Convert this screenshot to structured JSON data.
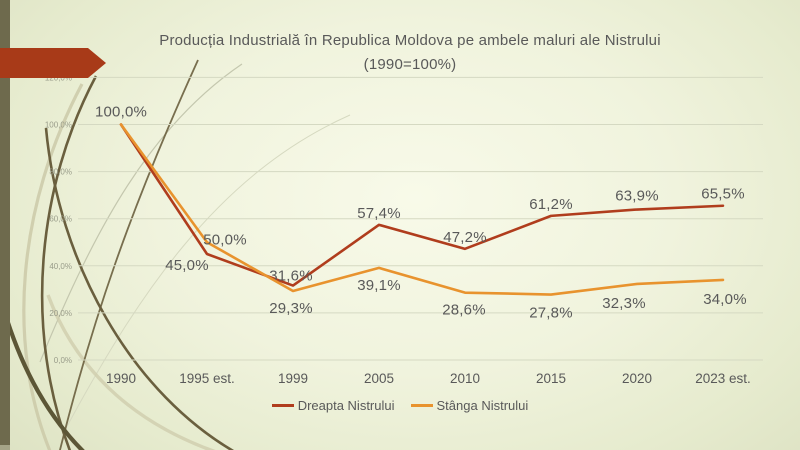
{
  "slide": {
    "title_line1": "Producția Industrială în Republica Moldova pe ambele maluri ale Nistrului",
    "title_line2": "(1990=100%)"
  },
  "chart_data": {
    "type": "line",
    "title": "Producția Industrială în Republica Moldova pe ambele maluri ale Nistrului (1990=100%)",
    "categories": [
      "1990",
      "1995 est.",
      "1999",
      "2005",
      "2010",
      "2015",
      "2020",
      "2023 est."
    ],
    "series": [
      {
        "name": "Dreapta Nistrului",
        "color": "#b03d1d",
        "values": [
          100.0,
          45.0,
          31.6,
          57.4,
          47.2,
          61.2,
          63.9,
          65.5
        ],
        "labels": [
          "100,0%",
          "45,0%",
          "31,6%",
          "57,4%",
          "47,2%",
          "61,2%",
          "63,9%",
          "65,5%"
        ]
      },
      {
        "name": "Stânga Nistrului",
        "color": "#e8932e",
        "values": [
          100.0,
          50.0,
          29.3,
          39.1,
          28.6,
          27.8,
          32.3,
          34.0
        ],
        "labels": [
          "",
          "50,0%",
          "29,3%",
          "39,1%",
          "28,6%",
          "27,8%",
          "32,3%",
          "34,0%"
        ]
      }
    ],
    "y_axis": {
      "min": 0,
      "max": 120,
      "step": 20,
      "tick_labels": [
        "0,0%",
        "20,0%",
        "40,0%",
        "60,0%",
        "80,0%",
        "100,0%",
        "120,0%"
      ]
    },
    "grid": true,
    "legend_position": "bottom"
  },
  "colors": {
    "accent_arrow_red": "#a83a18",
    "series_red": "#b03d1d",
    "series_orange": "#e8932e",
    "text_gray": "#595959",
    "axis_tick_gray": "#999c8a",
    "gridline": "#d5d9c2",
    "left_bar_olive": "#6e6a4d",
    "swirl_dark": "#6a5f3e",
    "swirl_light": "#cbc9a8"
  }
}
